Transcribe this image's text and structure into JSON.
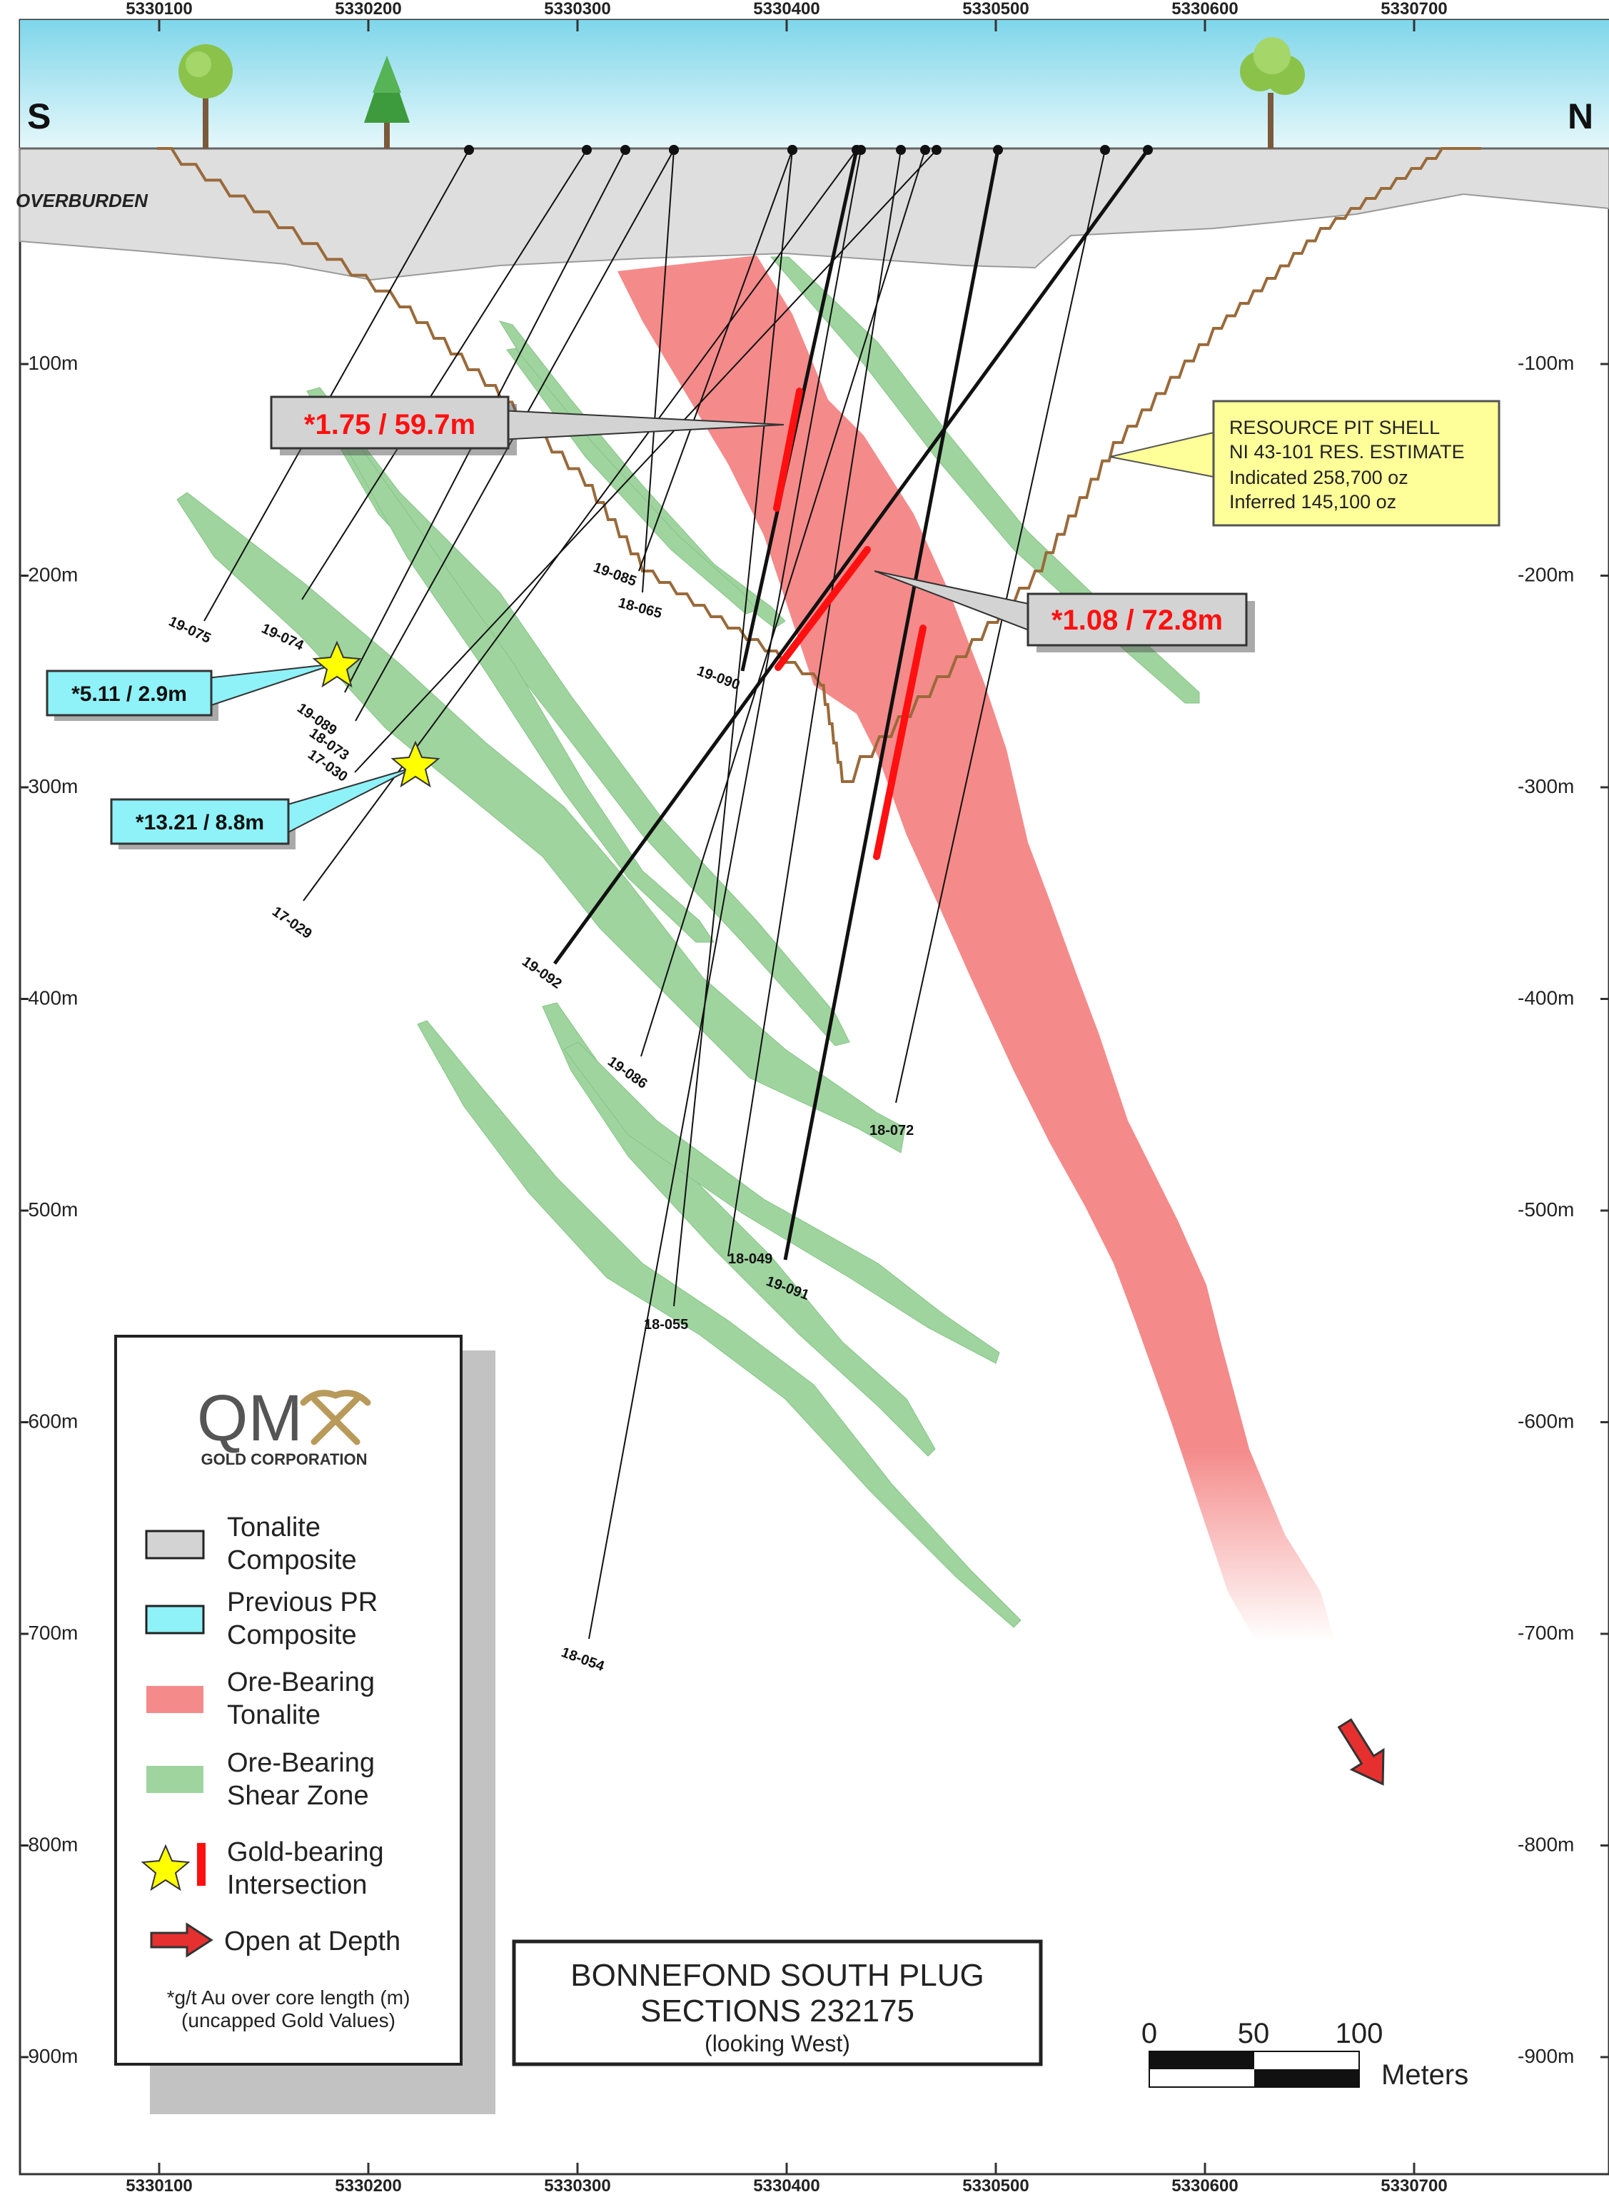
{
  "axes": {
    "easting_ticks": [
      "5330100",
      "5330200",
      "5330300",
      "5330400",
      "5330500",
      "5330600",
      "5330700"
    ],
    "depth_ticks": [
      "-100m",
      "-200m",
      "-300m",
      "-400m",
      "-500m",
      "-600m",
      "-700m",
      "-800m",
      "-900m"
    ],
    "south_label": "S",
    "north_label": "N"
  },
  "overburden_label": "OVERBURDEN",
  "pit_shell": {
    "lines": [
      "RESOURCE PIT SHELL",
      "NI 43-101 RES. ESTIMATE",
      "Indicated 258,700 oz",
      "Inferred 145,100 oz"
    ]
  },
  "intersections": [
    {
      "label": "*1.75 / 59.7m",
      "style": "gray"
    },
    {
      "label": "*1.08 / 72.8m",
      "style": "gray"
    },
    {
      "label": "*5.11 / 2.9m",
      "style": "cyan"
    },
    {
      "label": "*13.21 / 8.8m",
      "style": "cyan"
    }
  ],
  "drill_holes": [
    "19-075",
    "19-074",
    "19-089",
    "18-073",
    "17-030",
    "17-029",
    "19-085",
    "18-065",
    "19-090",
    "19-092",
    "19-086",
    "18-072",
    "18-049",
    "19-091",
    "18-055",
    "18-054"
  ],
  "legend": {
    "logo_main": "QM",
    "logo_sub": "GOLD CORPORATION",
    "items": [
      {
        "line1": "Tonalite",
        "line2": "Composite",
        "color": "#d3d3d3"
      },
      {
        "line1": "Previous PR",
        "line2": "Composite",
        "color": "#8ef2f8"
      },
      {
        "line1": "Ore-Bearing",
        "line2": "Tonalite",
        "color": "#f58a8a"
      },
      {
        "line1": "Ore-Bearing",
        "line2": "Shear Zone",
        "color": "#9fd49f"
      },
      {
        "line1": "Gold-bearing",
        "line2": "Intersection",
        "color": "#ff2020"
      },
      {
        "line1": "Open at Depth",
        "line2": "",
        "color": "#e63030"
      }
    ],
    "footnote1": "*g/t Au over core length (m)",
    "footnote2": "(uncapped Gold Values)"
  },
  "title": {
    "line1": "BONNEFOND SOUTH PLUG",
    "line2": "SECTIONS 232175",
    "line3": "(looking West)"
  },
  "scale_bar": {
    "labels": [
      "0",
      "50",
      "100"
    ],
    "unit": "Meters"
  },
  "colors": {
    "sky": "#a8e4f0",
    "overburden": "#dedede",
    "tonalite": "#f58a8a",
    "shear": "#9fd49f",
    "pit": "#9a6a3a",
    "callout_yellow": "#ffff99",
    "callout_cyan": "#8ef2f8",
    "callout_gray": "#d3d3d3"
  }
}
